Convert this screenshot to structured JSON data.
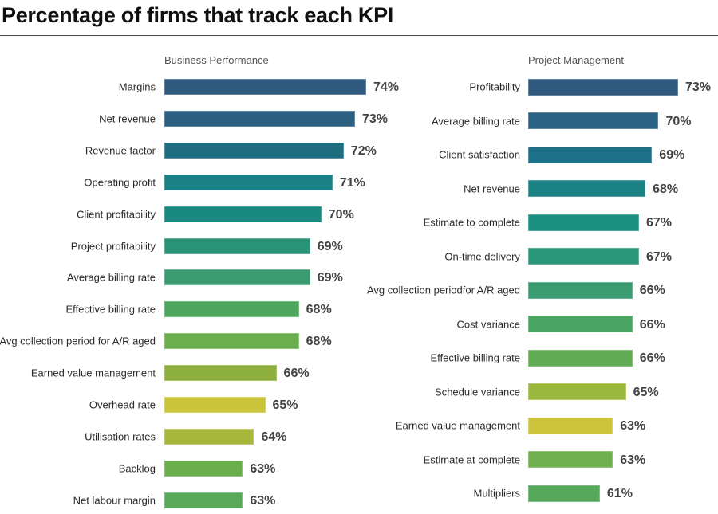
{
  "chart_data": [
    {
      "type": "bar",
      "orientation": "horizontal",
      "title": "Business Performance",
      "categories": [
        "Margins",
        "Net revenue",
        "Revenue factor",
        "Operating profit",
        "Client profitability",
        "Project profitability",
        "Average billing rate",
        "Effective billing rate",
        "Avg collection period for A/R aged",
        "Earned value management",
        "Overhead rate",
        "Utilisation rates",
        "Backlog",
        "Net labour margin"
      ],
      "values": [
        74,
        73,
        72,
        71,
        70,
        69,
        69,
        68,
        68,
        66,
        65,
        64,
        63,
        63
      ],
      "labels": [
        "74%",
        "73%",
        "72%",
        "71%",
        "70%",
        "69%",
        "69%",
        "68%",
        "68%",
        "66%",
        "65%",
        "64%",
        "63%",
        "63%"
      ],
      "colors": [
        "#2f5a7e",
        "#2d5f80",
        "#1e6e80",
        "#1a8086",
        "#17897e",
        "#2a9378",
        "#3a9a70",
        "#4ea65e",
        "#6aaf50",
        "#8db040",
        "#c9c43a",
        "#a6b73c",
        "#6aae50",
        "#58aa58"
      ],
      "xlim": [
        56,
        74
      ],
      "grid": false
    },
    {
      "type": "bar",
      "orientation": "horizontal",
      "title": "Project Management",
      "categories": [
        "Profitability",
        "Average billing rate",
        "Client satisfaction",
        "Net revenue",
        "Estimate to complete",
        "On-time delivery",
        "Avg collection periodfor A/R aged",
        "Cost variance",
        "Effective billing rate",
        "Schedule variance",
        "Earned value management",
        "Estimate at complete",
        "Multipliers"
      ],
      "values": [
        73,
        70,
        69,
        68,
        67,
        67,
        66,
        66,
        66,
        65,
        63,
        63,
        61
      ],
      "labels": [
        "73%",
        "70%",
        "69%",
        "68%",
        "67%",
        "67%",
        "66%",
        "66%",
        "66%",
        "65%",
        "63%",
        "63%",
        "61%"
      ],
      "colors": [
        "#2f5a7e",
        "#2c6184",
        "#1e7088",
        "#1a8285",
        "#199080",
        "#2a967a",
        "#3a9c70",
        "#4aa462",
        "#62ab55",
        "#9ab83e",
        "#cdc43c",
        "#70b050",
        "#55a85a"
      ],
      "xlim": [
        50,
        73
      ],
      "grid": false
    }
  ],
  "page": {
    "title": "Percentage of firms that track each KPI"
  }
}
